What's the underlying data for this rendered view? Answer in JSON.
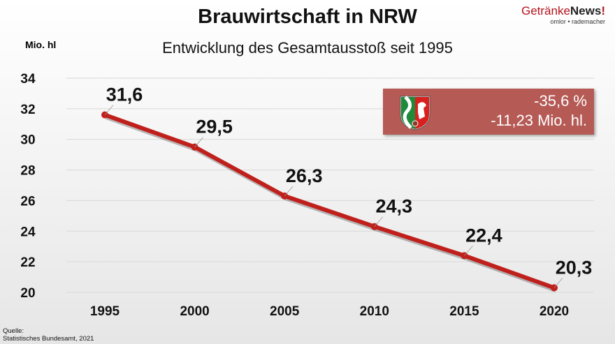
{
  "header": {
    "title": "Brauwirtschaft in NRW",
    "subtitle": "Entwicklung des Gesamtausstoß seit 1995",
    "logo_main": "Getränke",
    "logo_bold": "News",
    "logo_mark": "!",
    "logo_sub": "omlor • rademacher"
  },
  "source": {
    "line1": "Quelle:",
    "line2": "Statistisches Bundesamt, 2021"
  },
  "callout": {
    "percent": "-35,6 %",
    "absolute": "-11,23 Mio. hl.",
    "icon": "nrw-coat-of-arms-icon"
  },
  "colors": {
    "line": "#c0201c",
    "callout": "#b55a55"
  },
  "chart_data": {
    "type": "line",
    "title": "Brauwirtschaft in NRW",
    "subtitle": "Entwicklung des Gesamtausstoß seit 1995",
    "ylabel": "Mio. hl",
    "xlabel": "",
    "categories": [
      "1995",
      "2000",
      "2005",
      "2010",
      "2015",
      "2020"
    ],
    "values": [
      31.6,
      29.5,
      26.3,
      24.3,
      22.4,
      20.3
    ],
    "data_labels": [
      "31,6",
      "29,5",
      "26,3",
      "24,3",
      "22,4",
      "20,3"
    ],
    "yticks": [
      20,
      22,
      24,
      26,
      28,
      30,
      32,
      34
    ],
    "ylim": [
      20,
      34
    ],
    "grid": true,
    "legend": "none"
  }
}
